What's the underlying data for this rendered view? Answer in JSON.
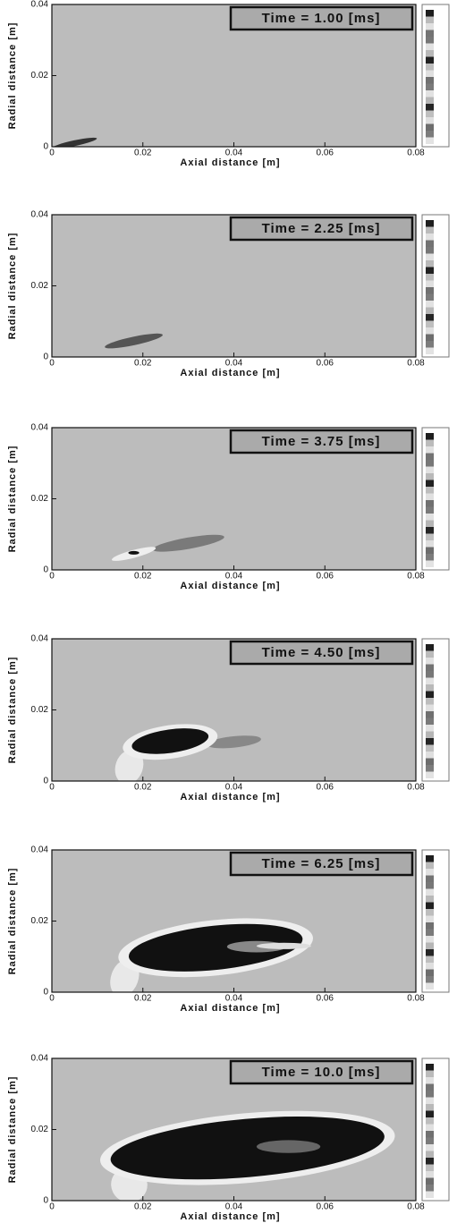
{
  "chart_data": [
    {
      "type": "contour",
      "title": "Time = 1.00 [ms]",
      "xlabel": "Axial distance [m]",
      "ylabel": "Radial distance [m]",
      "xlim": [
        0,
        0.08
      ],
      "xticks": [
        0,
        0.02,
        0.04,
        0.06,
        0.08
      ],
      "ylim": [
        0,
        0.04
      ],
      "yticks": [
        0,
        0.02,
        0.04
      ],
      "grid": false
    },
    {
      "type": "contour",
      "title": "Time = 2.25 [ms]",
      "xlabel": "Axial distance [m]",
      "ylabel": "Radial distance [m]",
      "xlim": [
        0,
        0.08
      ],
      "xticks": [
        0,
        0.02,
        0.04,
        0.06,
        0.08
      ],
      "ylim": [
        0,
        0.04
      ],
      "yticks": [
        0,
        0.02,
        0.04
      ],
      "grid": false
    },
    {
      "type": "contour",
      "title": "Time = 3.75 [ms]",
      "xlabel": "Axial distance [m]",
      "ylabel": "Radial distance [m]",
      "xlim": [
        0,
        0.08
      ],
      "xticks": [
        0,
        0.02,
        0.04,
        0.06,
        0.08
      ],
      "ylim": [
        0,
        0.04
      ],
      "yticks": [
        0,
        0.02,
        0.04
      ],
      "grid": false
    },
    {
      "type": "contour",
      "title": "Time = 4.50 [ms]",
      "xlabel": "Axial distance [m]",
      "ylabel": "Radial distance [m]",
      "xlim": [
        0,
        0.08
      ],
      "xticks": [
        0,
        0.02,
        0.04,
        0.06,
        0.08
      ],
      "ylim": [
        0,
        0.04
      ],
      "yticks": [
        0,
        0.02,
        0.04
      ],
      "grid": false
    },
    {
      "type": "contour",
      "title": "Time = 6.25 [ms]",
      "xlabel": "Axial distance [m]",
      "ylabel": "Radial distance [m]",
      "xlim": [
        0,
        0.08
      ],
      "xticks": [
        0,
        0.02,
        0.04,
        0.06,
        0.08
      ],
      "ylim": [
        0,
        0.04
      ],
      "yticks": [
        0,
        0.02,
        0.04
      ],
      "grid": false
    },
    {
      "type": "contour",
      "title": "Time = 10.0 [ms]",
      "xlabel": "Axial distance [m]",
      "ylabel": "Radial distance [m]",
      "xlim": [
        0,
        0.08
      ],
      "xticks": [
        0,
        0.02,
        0.04,
        0.06,
        0.08
      ],
      "ylim": [
        0,
        0.04
      ],
      "yticks": [
        0,
        0.02,
        0.04
      ],
      "grid": false
    }
  ]
}
